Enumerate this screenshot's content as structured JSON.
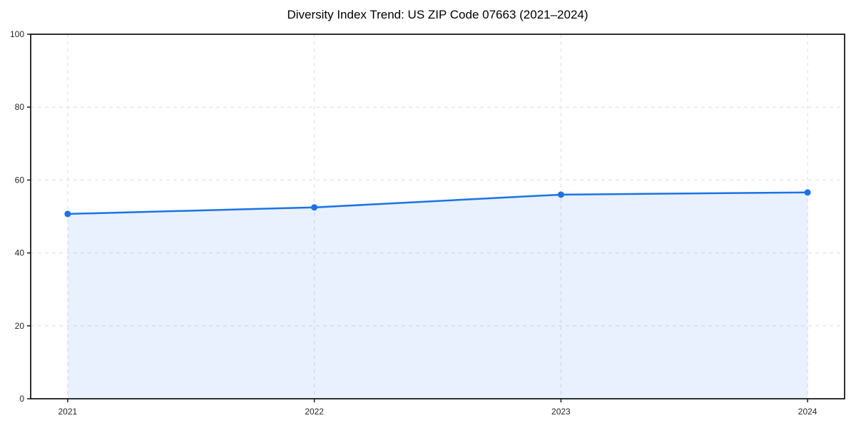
{
  "figure": {
    "background": "#ffffff"
  },
  "chart_data": {
    "type": "line",
    "title": "Diversity Index Trend: US ZIP Code 07663 (2021–2024)",
    "categories": [
      "2021",
      "2022",
      "2023",
      "2024"
    ],
    "values": [
      50.7,
      52.5,
      56.0,
      56.6
    ],
    "xlabel": "",
    "ylabel": "",
    "ylim": [
      0,
      100
    ],
    "y_ticks": [
      0,
      20,
      40,
      60,
      80,
      100
    ],
    "grid": "dashed-both-axes",
    "legend_position": "none",
    "marker": "circle",
    "style": {
      "line_color": "#1a73e8",
      "marker_color": "#1a73e8",
      "fill_color": "#1a73e8",
      "fill_opacity": 0.1,
      "grid_color": "#dedede",
      "spine_color": "#1a1a1a",
      "tick_label_color": "#262626",
      "title_color": "#000000"
    }
  }
}
